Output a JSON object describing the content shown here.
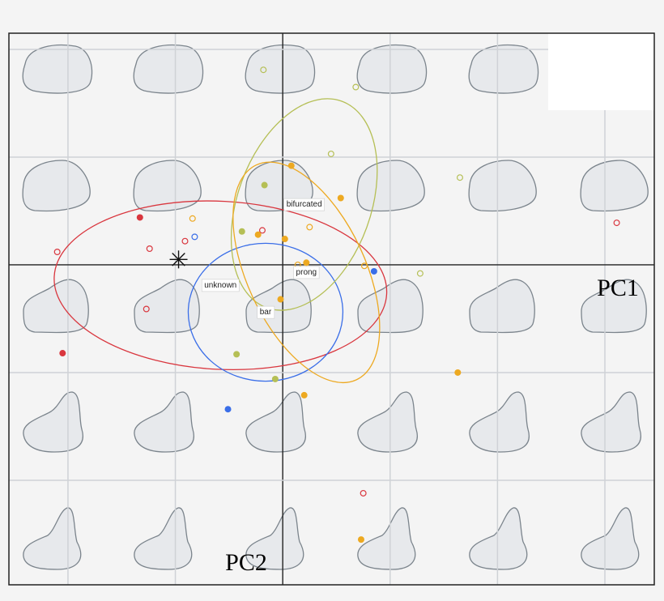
{
  "chart_data": {
    "type": "scatter",
    "x_label": "PC1",
    "y_label": "PC2",
    "xlim": [
      -2.55,
      3.46
    ],
    "ylim": [
      -2.97,
      2.15
    ],
    "xticks": [
      -2,
      -1,
      0,
      1,
      2,
      3
    ],
    "yticks": [
      -2,
      -1,
      0,
      1,
      2
    ],
    "grid": true,
    "star": {
      "x": -0.97,
      "y": 0.05
    },
    "series": [
      {
        "name": "unknown",
        "color": "#d9363e",
        "x": [
          -1.33,
          -2.05,
          -2.1,
          -1.24,
          -0.91,
          -0.19,
          -1.27,
          0.75,
          3.11
        ],
        "values": [
          0.44,
          -0.82,
          0.12,
          0.15,
          0.22,
          0.32,
          -0.41,
          -2.12,
          0.39
        ],
        "hollow": [
          false,
          false,
          true,
          true,
          true,
          true,
          true,
          true,
          true
        ],
        "ellipse": {
          "cx": -0.58,
          "cy": -0.19,
          "rx": 1.55,
          "ry": 0.78,
          "rotation": 3
        }
      },
      {
        "name": "bar",
        "color": "#3a6ee8",
        "x": [
          -0.82,
          0.85,
          -0.51
        ],
        "values": [
          0.26,
          -0.06,
          -1.34
        ],
        "hollow": [
          true,
          false,
          false
        ],
        "ellipse": {
          "cx": -0.16,
          "cy": -0.44,
          "rx": 0.72,
          "ry": 0.64,
          "rotation": 0
        }
      },
      {
        "name": "bifurcated",
        "color": "#b5bf55",
        "x": [
          -0.18,
          0.68,
          0.45,
          1.65,
          -0.17,
          -0.38,
          -0.43,
          -0.07,
          1.28
        ],
        "values": [
          1.81,
          1.65,
          1.03,
          0.81,
          0.74,
          0.31,
          -0.83,
          -1.06,
          -0.08
        ],
        "hollow": [
          true,
          true,
          true,
          true,
          false,
          false,
          false,
          false,
          true
        ],
        "ellipse": {
          "cx": 0.2,
          "cy": 0.56,
          "rx": 0.62,
          "ry": 1.02,
          "rotation": 20
        }
      },
      {
        "name": "prong",
        "color": "#eda921",
        "x": [
          0.08,
          0.54,
          -0.23,
          0.02,
          0.22,
          -0.02,
          0.2,
          1.63,
          0.73,
          -0.84,
          0.25,
          0.76,
          0.14
        ],
        "values": [
          0.92,
          0.62,
          0.28,
          0.24,
          0.02,
          -0.32,
          -1.21,
          -1.0,
          -2.55,
          0.43,
          0.35,
          -0.01,
          0.0
        ],
        "hollow": [
          false,
          false,
          false,
          false,
          false,
          false,
          false,
          false,
          false,
          true,
          true,
          true,
          true
        ],
        "ellipse": {
          "cx": 0.22,
          "cy": -0.07,
          "rx": 0.55,
          "ry": 1.1,
          "rotation": -25
        }
      }
    ]
  }
}
